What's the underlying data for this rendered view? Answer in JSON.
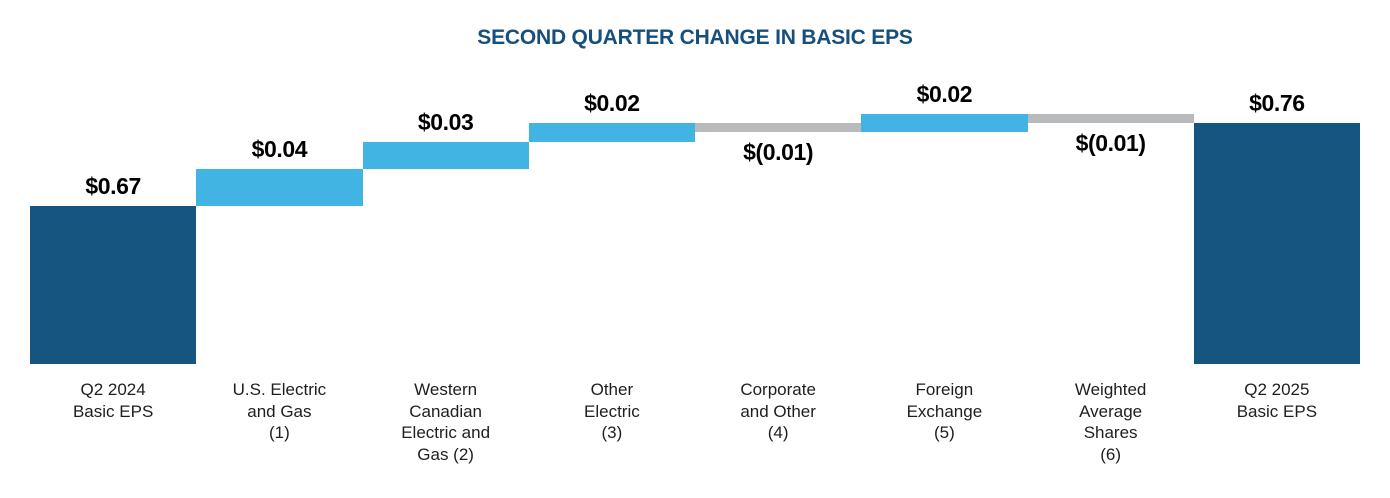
{
  "chart_data": {
    "type": "bar",
    "subtype": "waterfall",
    "title": "SECOND QUARTER CHANGE IN BASIC EPS",
    "unit": "$ per share (Basic EPS)",
    "axis": {
      "y_min_shown": 0.5,
      "y_max_shown": 0.77,
      "gridlines": false,
      "legend": false,
      "note": "y-axis truncated; total bars cut off at bottom of plot"
    },
    "bars": [
      {
        "category": "Q2 2024 Basic EPS",
        "label_lines": [
          "Q2 2024",
          "Basic EPS"
        ],
        "kind": "total",
        "value": 0.67,
        "display_value": "$0.67"
      },
      {
        "category": "U.S. Electric and Gas (1)",
        "label_lines": [
          "U.S. Electric",
          "and Gas",
          "(1)"
        ],
        "kind": "increase",
        "value": 0.04,
        "display_value": "$0.04"
      },
      {
        "category": "Western Canadian Electric and Gas (2)",
        "label_lines": [
          "Western",
          "Canadian",
          "Electric and",
          "Gas (2)"
        ],
        "kind": "increase",
        "value": 0.03,
        "display_value": "$0.03"
      },
      {
        "category": "Other Electric (3)",
        "label_lines": [
          "Other",
          "Electric",
          "(3)"
        ],
        "kind": "increase",
        "value": 0.02,
        "display_value": "$0.02"
      },
      {
        "category": "Corporate and Other (4)",
        "label_lines": [
          "Corporate",
          "and Other",
          "(4)"
        ],
        "kind": "decrease",
        "value": -0.01,
        "display_value": "$(0.01)"
      },
      {
        "category": "Foreign Exchange (5)",
        "label_lines": [
          "Foreign",
          "Exchange",
          "(5)"
        ],
        "kind": "increase",
        "value": 0.02,
        "display_value": "$0.02"
      },
      {
        "category": "Weighted Average Shares (6)",
        "label_lines": [
          "Weighted",
          "Average",
          "Shares",
          "(6)"
        ],
        "kind": "decrease",
        "value": -0.01,
        "display_value": "$(0.01)"
      },
      {
        "category": "Q2 2025 Basic EPS",
        "label_lines": [
          "Q2 2025",
          "Basic EPS"
        ],
        "kind": "total",
        "value": 0.76,
        "display_value": "$0.76"
      }
    ],
    "cumulative_check": [
      0.67,
      0.71,
      0.74,
      0.76,
      0.75,
      0.77,
      0.76,
      0.76
    ]
  },
  "colors": {
    "total": "#175581",
    "increase": "#41b4e3",
    "decrease": "#b9babb",
    "title": "#164f7d",
    "value_label": "#000000",
    "category_label": "#1e1e1e",
    "background": "#ffffff"
  }
}
